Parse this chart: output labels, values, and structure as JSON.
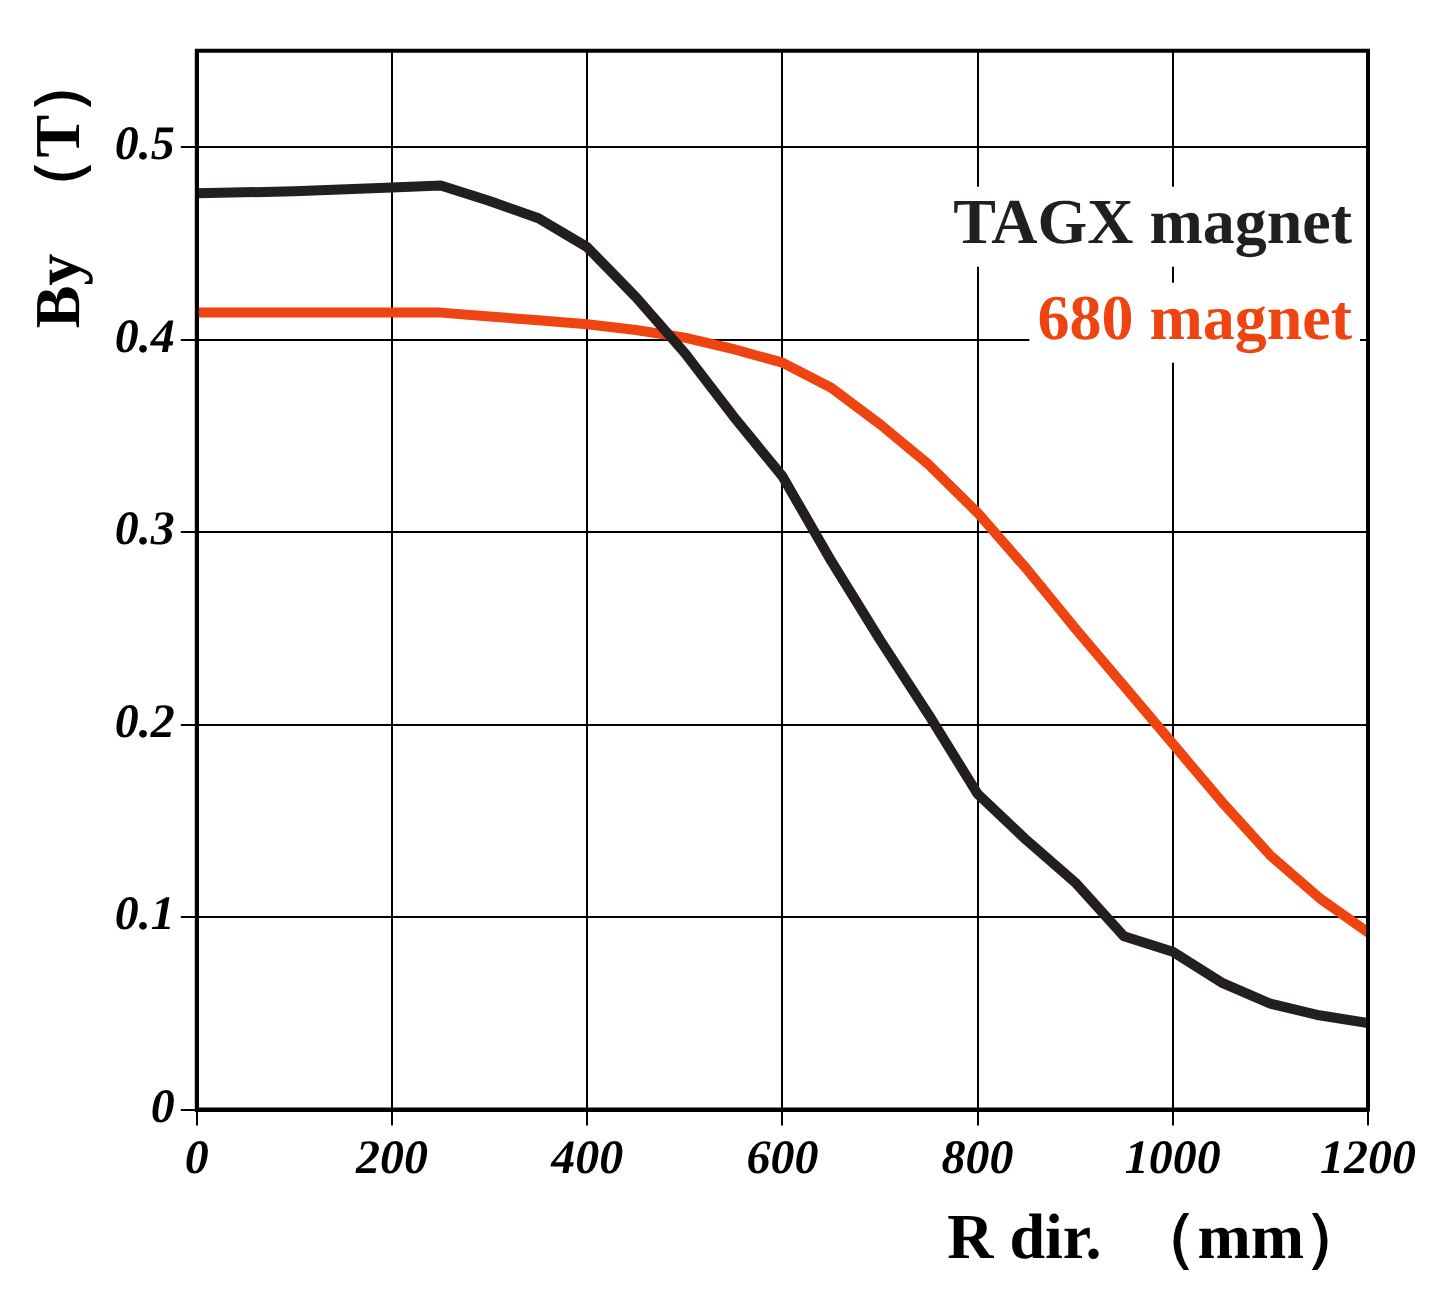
{
  "chart_data": {
    "type": "line",
    "xlabel": "R dir.  （mm）",
    "ylabel": "By  （T）",
    "xlim": [
      0,
      1200
    ],
    "xticks": [
      0,
      200,
      400,
      600,
      800,
      1000,
      1200
    ],
    "ylim": [
      0,
      0.55
    ],
    "yticks": [
      0,
      0.1,
      0.2,
      0.3,
      0.4,
      0.5
    ],
    "grid": true,
    "legend": "top right",
    "marker": "none",
    "line_style": "solid",
    "x": [
      0,
      100,
      200,
      250,
      300,
      350,
      400,
      450,
      500,
      550,
      600,
      650,
      700,
      750,
      800,
      850,
      900,
      950,
      1000,
      1050,
      1100,
      1150,
      1200
    ],
    "series": [
      {
        "name": "TAGX magnet",
        "color": "#231f20",
        "values": [
          0.476,
          0.477,
          0.479,
          0.48,
          0.472,
          0.463,
          0.448,
          0.422,
          0.393,
          0.36,
          0.329,
          0.285,
          0.244,
          0.205,
          0.164,
          0.14,
          0.118,
          0.09,
          0.082,
          0.066,
          0.055,
          0.049,
          0.045
        ]
      },
      {
        "name": "680 magnet",
        "color": "#ee4411",
        "values": [
          0.414,
          0.414,
          0.414,
          0.414,
          0.412,
          0.41,
          0.408,
          0.405,
          0.401,
          0.395,
          0.388,
          0.375,
          0.356,
          0.335,
          0.31,
          0.281,
          0.25,
          0.22,
          0.19,
          0.16,
          0.132,
          0.11,
          0.092
        ]
      }
    ]
  }
}
